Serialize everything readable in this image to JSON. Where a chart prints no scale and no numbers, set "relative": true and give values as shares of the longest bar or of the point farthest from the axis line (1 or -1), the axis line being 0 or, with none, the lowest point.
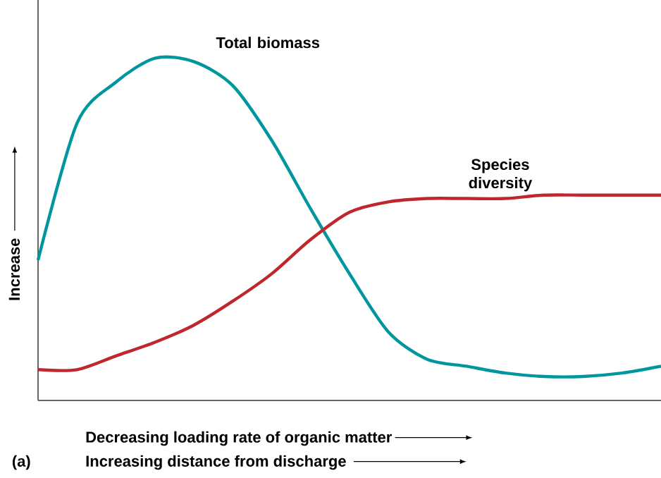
{
  "chart_data": {
    "type": "line",
    "relative": true,
    "ylabel": "Increase",
    "xlabel": "Decreasing loading rate of organic matter",
    "annotations": [
      "Increasing distance from discharge",
      "(a)"
    ],
    "categories": [
      null,
      null,
      null,
      null,
      null,
      null,
      null,
      null,
      null,
      null,
      null,
      null,
      null,
      null,
      null,
      null,
      null
    ],
    "series": [
      {
        "name": "Total biomass",
        "color": "#00969e",
        "values": [
          0.41,
          0.81,
          0.93,
          1.0,
          0.99,
          0.92,
          0.76,
          0.56,
          0.37,
          0.2,
          0.12,
          0.1,
          0.08,
          0.07,
          0.07,
          0.08,
          0.1
        ]
      },
      {
        "name": "Species diversity",
        "color": "#c0272d",
        "values": [
          0.09,
          0.09,
          0.13,
          0.17,
          0.22,
          0.29,
          0.37,
          0.47,
          0.55,
          0.58,
          0.59,
          0.59,
          0.59,
          0.6,
          0.6,
          0.6,
          0.6
        ]
      }
    ]
  }
}
